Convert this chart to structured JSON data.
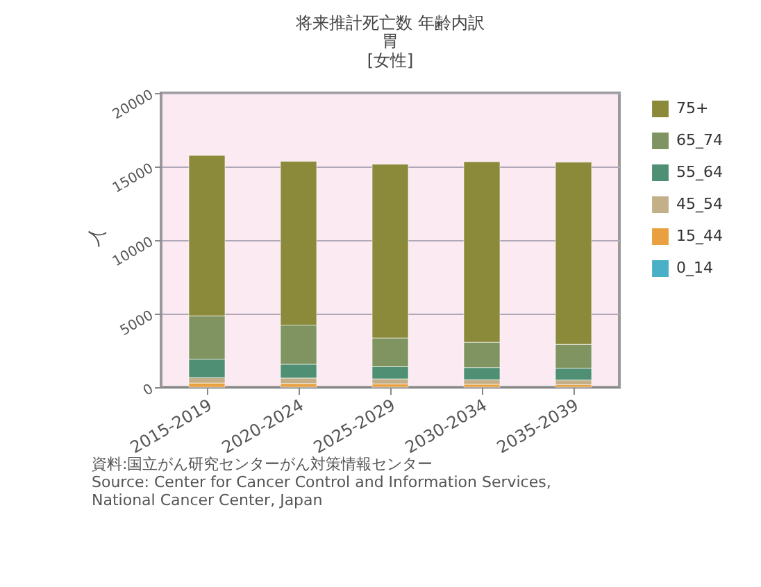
{
  "chart_data": {
    "type": "bar",
    "stacked": true,
    "title": "将来推計死亡数 年齢内訳",
    "subtitle": "胃\n[女性]",
    "ylabel": "人",
    "categories": [
      "2015-2019",
      "2020-2024",
      "2025-2029",
      "2030-2034",
      "2035-2039"
    ],
    "series": [
      {
        "name": "0_14",
        "color": "#4ab0c8",
        "values": [
          null,
          null,
          null,
          null,
          null
        ]
      },
      {
        "name": "15_44",
        "color": "#e8a040",
        "values": [
          280,
          250,
          225,
          195,
          165
        ]
      },
      {
        "name": "45_54",
        "color": "#c4b088",
        "values": [
          370,
          370,
          340,
          310,
          320
        ]
      },
      {
        "name": "55_64",
        "color": "#4f8f73",
        "values": [
          1250,
          940,
          830,
          830,
          800
        ]
      },
      {
        "name": "65_74",
        "color": "#7f9461",
        "values": [
          2950,
          2660,
          1950,
          1720,
          1630
        ]
      },
      {
        "name": "75+",
        "color": "#8a8a3a",
        "values": [
          10900,
          11130,
          11810,
          12270,
          12380
        ]
      }
    ],
    "ylim": [
      0,
      20000
    ],
    "yticks": [
      0,
      5000,
      10000,
      15000,
      20000
    ],
    "grid": "y",
    "legend": "right",
    "annotations": [
      "資料:国立がん研究センターがん対策情報センター\nSource: Center for Cancer Control and Information Services,\n          National Cancer Center, Japan"
    ]
  }
}
